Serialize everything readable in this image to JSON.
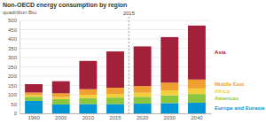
{
  "chart_data": {
    "type": "bar",
    "stacked": true,
    "grid": true,
    "legend": "right",
    "title": "Non-OECD energy consumption by region",
    "subtitle": "quadrillion Btu",
    "categories": [
      "1990",
      "2000",
      "2010",
      "2015",
      "2020",
      "2030",
      "2040"
    ],
    "series": [
      {
        "name": "Europe and Eurasia",
        "color": "#0096d6",
        "values": [
          67,
          48,
          50,
          50,
          52,
          55,
          57
        ]
      },
      {
        "name": "Americas",
        "color": "#8cc63f",
        "values": [
          22,
          28,
          33,
          35,
          37,
          42,
          47
        ]
      },
      {
        "name": "Africa",
        "color": "#f2cf3a",
        "values": [
          9,
          12,
          17,
          20,
          22,
          26,
          30
        ]
      },
      {
        "name": "Middle East",
        "color": "#f0a030",
        "values": [
          14,
          20,
          30,
          33,
          36,
          42,
          48
        ]
      },
      {
        "name": "Asia",
        "color": "#a3203a",
        "values": [
          45,
          65,
          152,
          195,
          213,
          245,
          290
        ]
      }
    ],
    "ylim": [
      0,
      500
    ],
    "yticks": [
      0,
      50,
      100,
      150,
      200,
      250,
      300,
      350,
      400,
      450,
      500
    ],
    "annotations": [
      {
        "text": "2015"
      }
    ]
  }
}
